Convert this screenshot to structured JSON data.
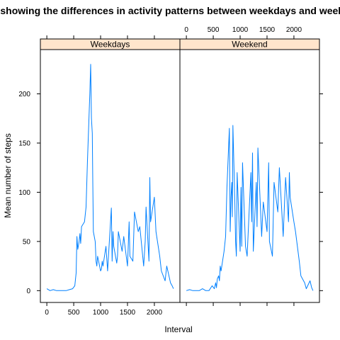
{
  "chart_data": {
    "type": "line",
    "title": "Plot showing the differences in activity patterns between weekdays and weekend",
    "xlabel": "Interval",
    "ylabel": "Mean number of steps",
    "xlim": [
      -120,
      2475
    ],
    "ylim": [
      -12,
      245
    ],
    "xticks": [
      0,
      500,
      1000,
      1500,
      2000
    ],
    "yticks": [
      0,
      50,
      100,
      150,
      200
    ],
    "line_color": "#0080ff",
    "strip_color": "#ffe5cc",
    "panels": [
      {
        "name": "Weekdays",
        "x": [
          0,
          60,
          120,
          180,
          240,
          300,
          360,
          420,
          480,
          520,
          545,
          560,
          575,
          600,
          615,
          630,
          645,
          700,
          730,
          755,
          800,
          815,
          830,
          845,
          855,
          865,
          900,
          915,
          930,
          945,
          1000,
          1015,
          1030,
          1045,
          1100,
          1130,
          1200,
          1215,
          1230,
          1245,
          1300,
          1315,
          1330,
          1400,
          1430,
          1500,
          1530,
          1545,
          1600,
          1630,
          1700,
          1730,
          1800,
          1830,
          1845,
          1900,
          1915,
          1930,
          2000,
          2030,
          2100,
          2130,
          2200,
          2230,
          2300,
          2330,
          2355
        ],
        "y": [
          2,
          0,
          1,
          0,
          0,
          0,
          0,
          1,
          2,
          5,
          18,
          55,
          42,
          50,
          58,
          48,
          65,
          70,
          85,
          130,
          200,
          230,
          175,
          160,
          110,
          60,
          50,
          30,
          25,
          35,
          20,
          22,
          30,
          25,
          45,
          20,
          84,
          30,
          60,
          45,
          28,
          35,
          60,
          40,
          55,
          25,
          70,
          35,
          30,
          80,
          60,
          65,
          25,
          50,
          85,
          30,
          115,
          70,
          95,
          60,
          35,
          20,
          10,
          25,
          8,
          5,
          2
        ]
      },
      {
        "name": "Weekend",
        "x": [
          0,
          60,
          120,
          180,
          240,
          300,
          360,
          420,
          480,
          520,
          545,
          560,
          575,
          600,
          615,
          630,
          645,
          700,
          730,
          755,
          800,
          815,
          830,
          845,
          855,
          865,
          900,
          915,
          930,
          945,
          1000,
          1015,
          1030,
          1045,
          1100,
          1130,
          1200,
          1215,
          1230,
          1245,
          1300,
          1315,
          1330,
          1400,
          1430,
          1500,
          1530,
          1545,
          1600,
          1630,
          1700,
          1730,
          1800,
          1830,
          1845,
          1900,
          1915,
          1930,
          2000,
          2030,
          2100,
          2130,
          2200,
          2230,
          2300,
          2330,
          2355
        ],
        "y": [
          0,
          1,
          0,
          0,
          0,
          2,
          0,
          0,
          5,
          2,
          8,
          3,
          12,
          15,
          10,
          25,
          20,
          40,
          55,
          105,
          165,
          60,
          95,
          110,
          75,
          168,
          95,
          50,
          35,
          120,
          40,
          105,
          45,
          130,
          45,
          35,
          120,
          70,
          140,
          40,
          110,
          65,
          145,
          55,
          90,
          60,
          130,
          50,
          35,
          110,
          80,
          125,
          55,
          95,
          115,
          70,
          120,
          95,
          70,
          60,
          30,
          15,
          8,
          2,
          10,
          3,
          0
        ]
      }
    ]
  }
}
